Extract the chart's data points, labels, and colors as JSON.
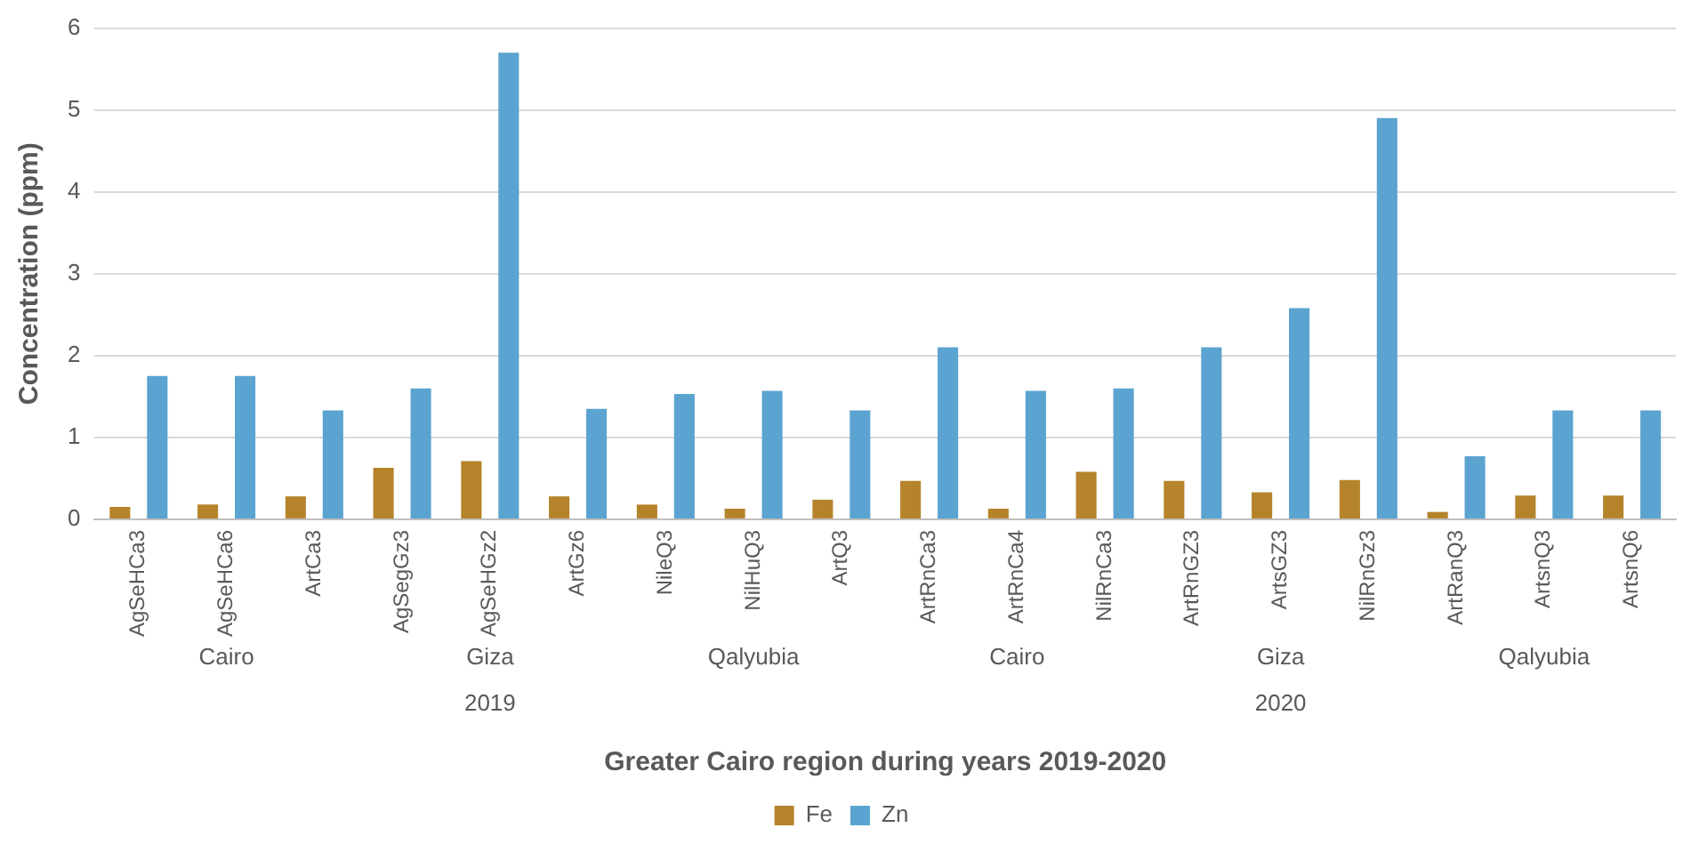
{
  "chart_data": {
    "type": "bar",
    "xlabel": "Greater Cairo region during years 2019-2020",
    "ylabel": "Concentration (ppm)",
    "categories": [
      "AgSeHCa3",
      "AgSeHCa6",
      "ArtCa3",
      "AgSegGz3",
      "AgSeHGz2",
      "ArtGz6",
      "NileQ3",
      "NilHuQ3",
      "ArtQ3",
      "ArtRnCa3",
      "ArtRnCa4",
      "NilRnCa3",
      "ArtRnGZ3",
      "ArtsGZ3",
      "NilRnGz3",
      "ArtRanQ3",
      "ArtsnQ3",
      "ArtsnQ6"
    ],
    "series": [
      {
        "name": "Fe",
        "color": "#b5832a",
        "values": [
          0.15,
          0.18,
          0.28,
          0.63,
          0.71,
          0.28,
          0.18,
          0.13,
          0.24,
          0.47,
          0.13,
          0.58,
          0.47,
          0.33,
          0.48,
          0.09,
          0.29,
          0.29
        ]
      },
      {
        "name": "Zn",
        "color": "#5ba3d0",
        "values": [
          1.75,
          1.75,
          1.33,
          1.6,
          5.7,
          1.35,
          1.53,
          1.57,
          1.33,
          2.1,
          1.57,
          1.6,
          2.1,
          2.58,
          4.9,
          0.77,
          1.33,
          1.33
        ]
      }
    ],
    "annotations": [
      "Cairo",
      "Giza",
      "Qalyubia",
      "Cairo",
      "Giza",
      "Qalyubia",
      "2019",
      "2020"
    ],
    "ylim": [
      0,
      6
    ],
    "yticks": [
      0,
      1,
      2,
      3,
      4,
      5,
      6
    ],
    "grid": "y",
    "legend": "bottom"
  }
}
